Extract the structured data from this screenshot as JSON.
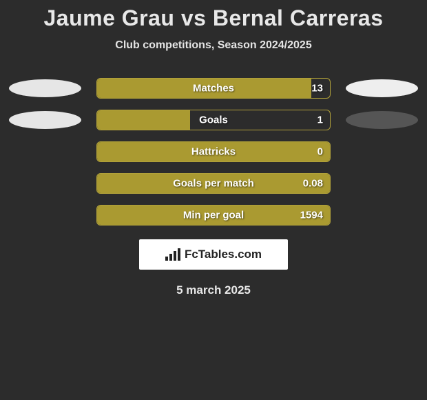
{
  "title": "Jaume Grau vs Bernal Carreras",
  "subtitle": "Club competitions, Season 2024/2025",
  "date": "5 march 2025",
  "branding_text": "FcTables.com",
  "colors": {
    "background": "#2c2c2c",
    "bar_border": "#b2a23a",
    "bar_fill": "#aa9a31",
    "oval_left": "#e6e6e6",
    "oval_right_1": "#eeeeee",
    "oval_right_2": "#555555",
    "text": "#ffffff",
    "title_text": "#e8e8e8"
  },
  "rows": [
    {
      "label": "Matches",
      "value_right_text": "13",
      "fill_pct": 92,
      "left_oval": true,
      "right_oval": true,
      "right_oval_color": "#eeeeee"
    },
    {
      "label": "Goals",
      "value_right_text": "1",
      "fill_pct": 40,
      "left_oval": true,
      "right_oval": true,
      "right_oval_color": "#555555"
    },
    {
      "label": "Hattricks",
      "value_right_text": "0",
      "fill_pct": 100,
      "left_oval": false,
      "right_oval": false,
      "right_oval_color": "#555555"
    },
    {
      "label": "Goals per match",
      "value_right_text": "0.08",
      "fill_pct": 100,
      "left_oval": false,
      "right_oval": false,
      "right_oval_color": "#555555"
    },
    {
      "label": "Min per goal",
      "value_right_text": "1594",
      "fill_pct": 100,
      "left_oval": false,
      "right_oval": false,
      "right_oval_color": "#555555"
    }
  ]
}
